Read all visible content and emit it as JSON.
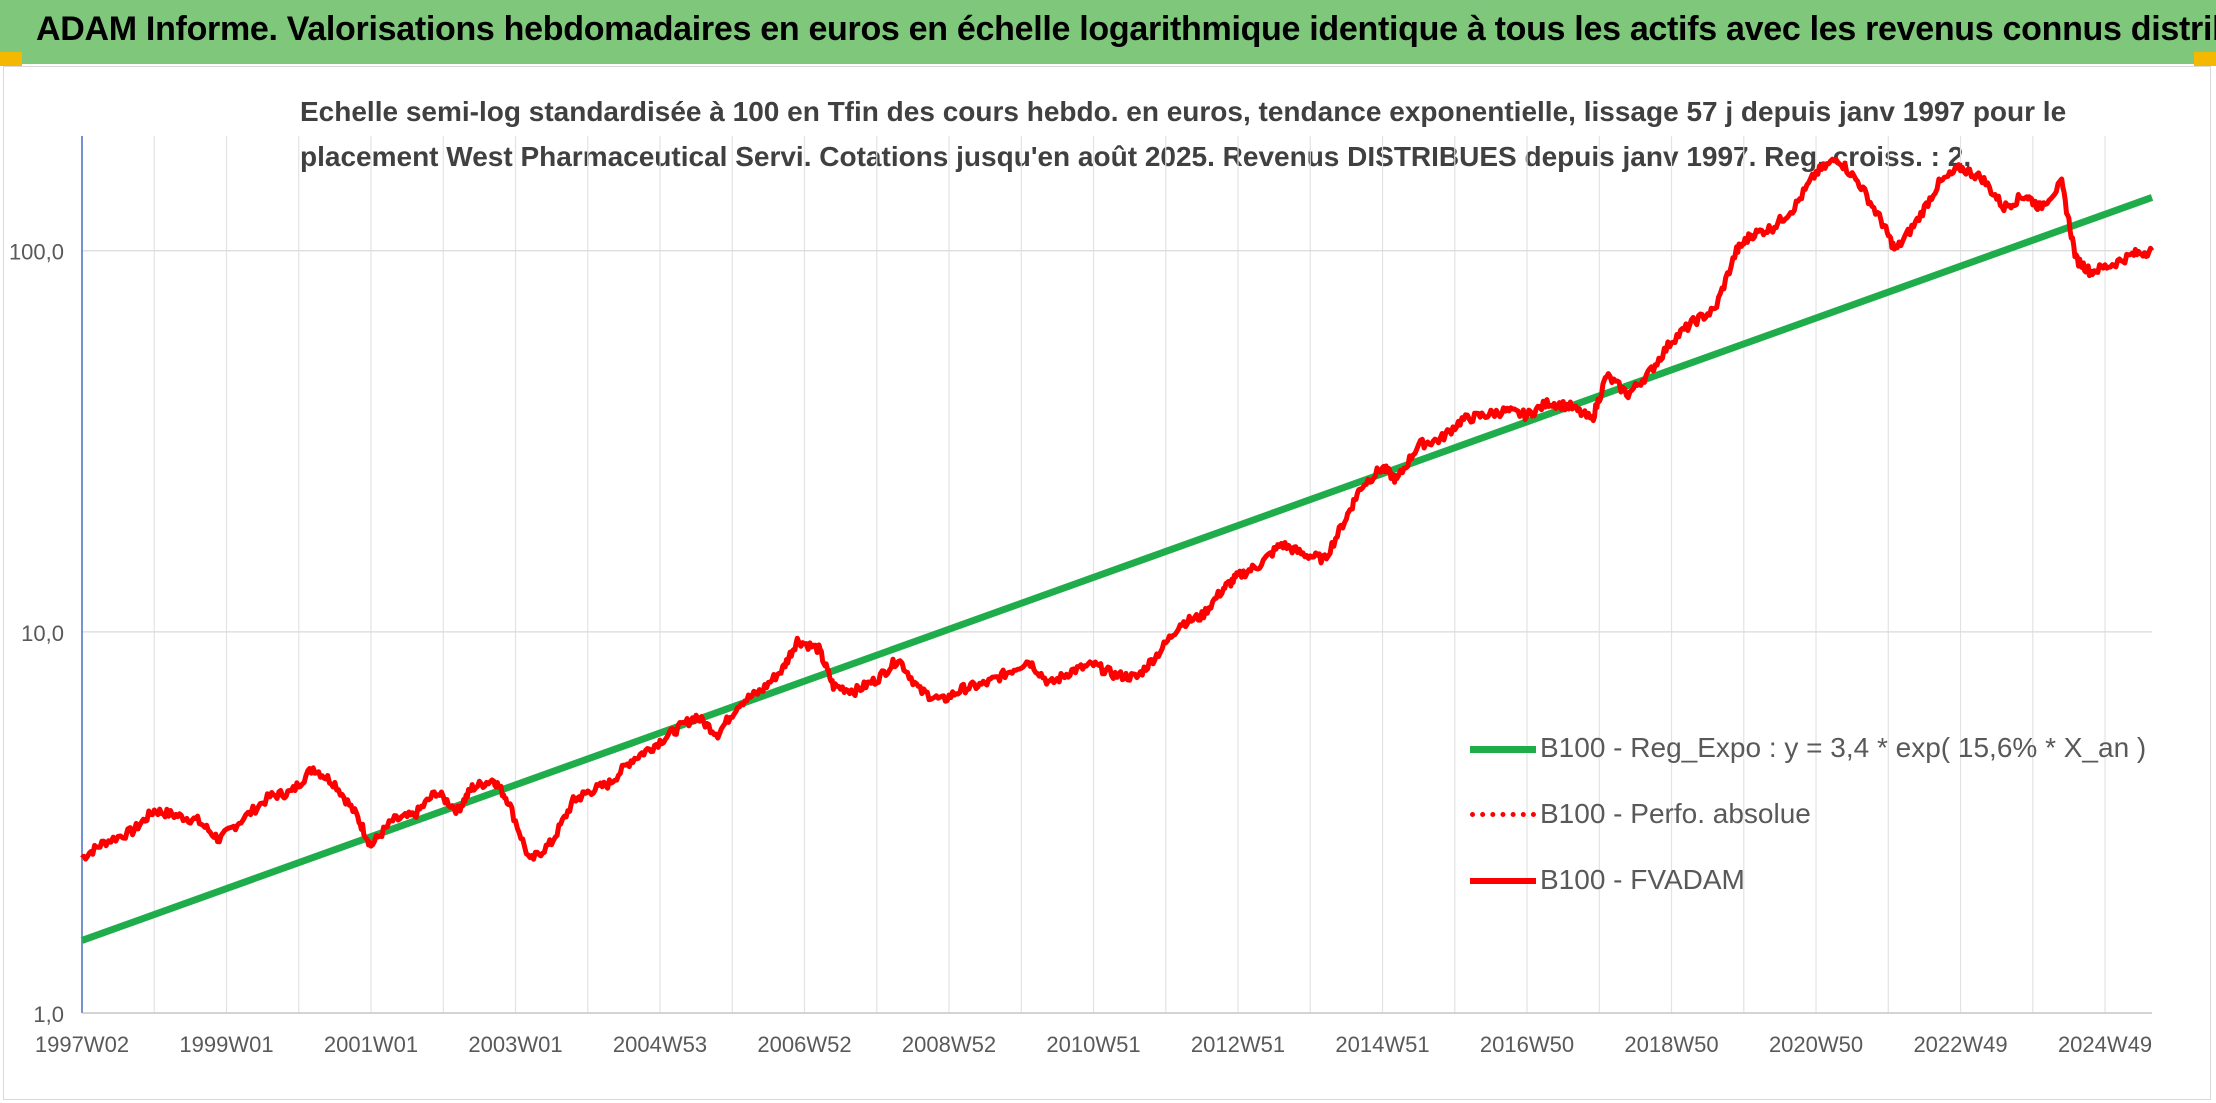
{
  "header": {
    "title": "ADAM Informe. Valorisations hebdomadaires en euros en échelle logarithmique identique à tous les actifs avec les revenus connus distribués"
  },
  "colors": {
    "banner": "#7ec77b",
    "accent": "#f5b800",
    "trend": "#1fad4b",
    "series": "#ff0000"
  },
  "chart_data": {
    "type": "line",
    "subtitle_lines": [
      "Echelle semi-log standardisée à 100 en Tfin des cours hebdo. en euros, tendance exponentielle, lissage 57 j depuis janv 1997 pour le",
      "placement West Pharmaceutical Servi. Cotations jusqu'en août 2025. Revenus DISTRIBUES depuis janv 1997. Reg. croiss. : 2,"
    ],
    "y_scale": "log",
    "ylim": [
      1,
      200
    ],
    "y_ticks": [
      1,
      10,
      100
    ],
    "y_tick_labels": [
      "1,0",
      "10,0",
      "100,0"
    ],
    "x_range": [
      1997.0,
      2025.65
    ],
    "x_tick_labels": [
      "1997W02",
      "1999W01",
      "2001W01",
      "2003W01",
      "2004W53",
      "2006W52",
      "2008W52",
      "2010W51",
      "2012W51",
      "2014W51",
      "2016W50",
      "2018W50",
      "2020W50",
      "2022W49",
      "2024W49"
    ],
    "x_tick_years": [
      1997.0,
      1999.0,
      2001.0,
      2003.0,
      2005.0,
      2007.0,
      2009.0,
      2011.0,
      2013.0,
      2015.0,
      2017.0,
      2019.0,
      2021.0,
      2023.0,
      2025.0
    ],
    "grid": true,
    "legend_position": "bottom-right",
    "series": [
      {
        "name": "B100 - Reg_Expo : y = 3,4 * exp( 15,6% *  X_an )",
        "style": "solid-thick",
        "color": "#1fad4b",
        "x": [
          1997.0,
          2025.65
        ],
        "y": [
          1.55,
          138
        ]
      },
      {
        "name": "B100 - Perfo. absolue",
        "style": "dotted",
        "color": "#ff0000",
        "x": [],
        "y": []
      },
      {
        "name": "B100 - FVADAM",
        "style": "solid",
        "color": "#ff0000",
        "x": [
          1997.0,
          1997.3,
          1997.7,
          1998.0,
          1998.3,
          1998.6,
          1998.9,
          1999.2,
          1999.6,
          1999.9,
          2000.2,
          2000.5,
          2000.8,
          2001.0,
          2001.3,
          2001.6,
          2001.9,
          2002.2,
          2002.4,
          2002.7,
          2002.9,
          2003.2,
          2003.5,
          2003.8,
          2004.0,
          2004.3,
          2004.6,
          2004.9,
          2005.2,
          2005.5,
          2005.8,
          2006.1,
          2006.4,
          2006.7,
          2006.9,
          2007.2,
          2007.4,
          2007.7,
          2008.0,
          2008.3,
          2008.6,
          2008.9,
          2009.2,
          2009.5,
          2009.8,
          2010.1,
          2010.4,
          2010.7,
          2011.0,
          2011.3,
          2011.6,
          2011.9,
          2012.2,
          2012.5,
          2012.8,
          2013.0,
          2013.3,
          2013.6,
          2013.9,
          2014.2,
          2014.5,
          2014.7,
          2015.0,
          2015.2,
          2015.5,
          2015.8,
          2016.1,
          2016.4,
          2016.7,
          2017.0,
          2017.3,
          2017.6,
          2017.9,
          2018.1,
          2018.4,
          2018.7,
          2019.0,
          2019.3,
          2019.6,
          2019.9,
          2020.1,
          2020.4,
          2020.7,
          2021.0,
          2021.3,
          2021.6,
          2021.9,
          2022.1,
          2022.4,
          2022.7,
          2023.0,
          2023.3,
          2023.6,
          2023.9,
          2024.1,
          2024.4,
          2024.6,
          2024.8,
          2025.1,
          2025.4,
          2025.65
        ],
        "y": [
          2.55,
          2.8,
          3.0,
          3.4,
          3.3,
          3.2,
          2.85,
          3.2,
          3.7,
          3.8,
          4.4,
          4.0,
          3.3,
          2.75,
          3.2,
          3.3,
          3.8,
          3.4,
          3.9,
          4.1,
          3.6,
          2.5,
          2.8,
          3.6,
          3.8,
          4.0,
          4.6,
          5.0,
          5.5,
          6.0,
          5.4,
          6.5,
          7.0,
          8.0,
          9.5,
          9.0,
          7.2,
          7.0,
          7.5,
          8.5,
          7.0,
          6.6,
          7.1,
          7.3,
          7.8,
          8.4,
          7.3,
          7.9,
          8.2,
          7.7,
          7.6,
          8.8,
          10.5,
          11.0,
          13.0,
          14.0,
          15.0,
          17.0,
          16.0,
          15.5,
          20.0,
          24.0,
          27.0,
          25.0,
          31.0,
          32.0,
          36.0,
          37.0,
          38.0,
          37.0,
          40.0,
          39.0,
          36.0,
          47.0,
          42.0,
          48.0,
          58.0,
          65.0,
          70.0,
          100.0,
          110.0,
          115.0,
          130.0,
          160.0,
          175.0,
          150.0,
          120.0,
          100.0,
          120.0,
          150.0,
          165.0,
          155.0,
          130.0,
          140.0,
          130.0,
          150.0,
          95.0,
          88.0,
          92.0,
          98.0,
          100.0
        ]
      }
    ]
  }
}
